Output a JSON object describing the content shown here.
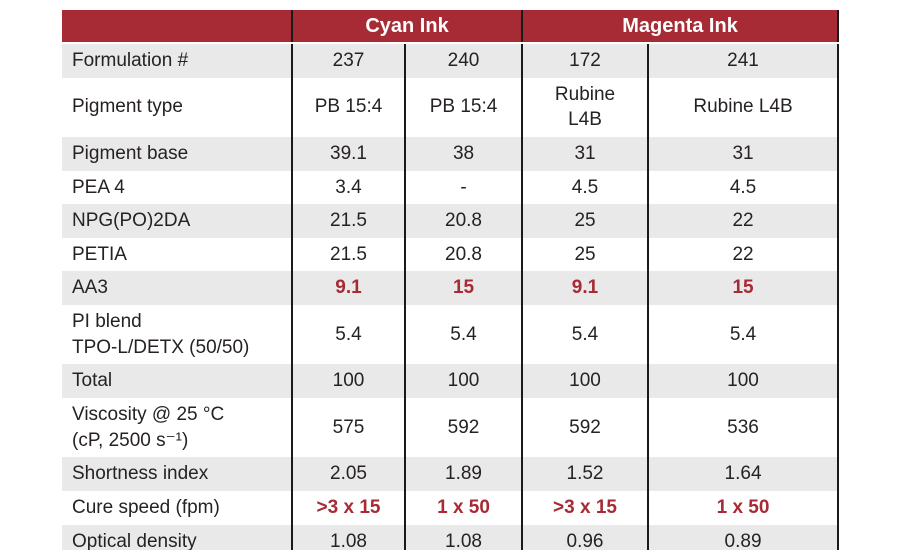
{
  "chart_data": {
    "type": "table",
    "header": {
      "corner": "",
      "cyan_group": "Cyan Ink",
      "magenta_group": "Magenta Ink"
    },
    "rows": [
      {
        "label": "Formulation #",
        "values": [
          "237",
          "240",
          "172",
          "241"
        ],
        "highlight": false
      },
      {
        "label": "Pigment type",
        "values": [
          "PB 15:4",
          "PB 15:4",
          "Rubine\nL4B",
          "Rubine L4B"
        ],
        "highlight": false
      },
      {
        "label": "Pigment base",
        "values": [
          "39.1",
          "38",
          "31",
          "31"
        ],
        "highlight": false
      },
      {
        "label": "PEA 4",
        "values": [
          "3.4",
          "-",
          "4.5",
          "4.5"
        ],
        "highlight": false
      },
      {
        "label": "NPG(PO)2DA",
        "values": [
          "21.5",
          "20.8",
          "25",
          "22"
        ],
        "highlight": false
      },
      {
        "label": "PETIA",
        "values": [
          "21.5",
          "20.8",
          "25",
          "22"
        ],
        "highlight": false
      },
      {
        "label": "AA3",
        "values": [
          "9.1",
          "15",
          "9.1",
          "15"
        ],
        "highlight": true
      },
      {
        "label": "PI blend\nTPO-L/DETX (50/50)",
        "values": [
          "5.4",
          "5.4",
          "5.4",
          "5.4"
        ],
        "highlight": false
      },
      {
        "label": "Total",
        "values": [
          "100",
          "100",
          "100",
          "100"
        ],
        "highlight": false
      },
      {
        "label": "Viscosity @  25 °C\n(cP, 2500 s⁻¹)",
        "values": [
          "575",
          "592",
          "592",
          "536"
        ],
        "highlight": false
      },
      {
        "label": "Shortness index",
        "values": [
          "2.05",
          "1.89",
          "1.52",
          "1.64"
        ],
        "highlight": false
      },
      {
        "label": "Cure speed (fpm)",
        "values": [
          ">3 x 15",
          "1 x 50",
          ">3 x 15",
          "1 x 50"
        ],
        "highlight": true
      },
      {
        "label": "Optical density",
        "values": [
          "1.08",
          "1.08",
          "0.96",
          "0.89"
        ],
        "highlight": false
      }
    ]
  },
  "colors": {
    "header_bg": "#A62B35",
    "header_text": "#FFFFFF",
    "shaded_row_bg": "#E9E9E9",
    "highlight_text": "#A62B35",
    "body_text": "#262224",
    "grid_line": "#1A1A1A"
  }
}
